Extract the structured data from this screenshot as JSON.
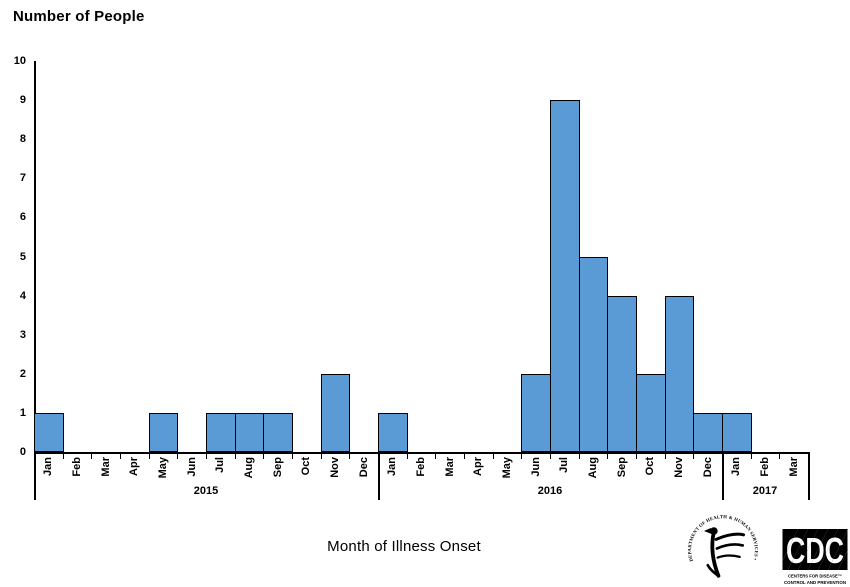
{
  "chart_data": {
    "type": "bar",
    "title": "Number of People",
    "xlabel": "Month of Illness Onset",
    "ylabel": "Number of People",
    "ylim": [
      0,
      10
    ],
    "ytick_step": 1,
    "grid": false,
    "legend": false,
    "background": "#FFFFFF",
    "axis_color": "#000000",
    "bar_color": "#5B9BD5",
    "bar_border_color": "#000000",
    "years": [
      {
        "label": "2015",
        "months": [
          "Jan",
          "Feb",
          "Mar",
          "Apr",
          "May",
          "Jun",
          "Jul",
          "Aug",
          "Sep",
          "Oct",
          "Nov",
          "Dec"
        ],
        "values": [
          1,
          0,
          0,
          0,
          1,
          0,
          1,
          1,
          1,
          0,
          2,
          0
        ]
      },
      {
        "label": "2016",
        "months": [
          "Jan",
          "Feb",
          "Mar",
          "Apr",
          "May",
          "Jun",
          "Jul",
          "Aug",
          "Sep",
          "Oct",
          "Nov",
          "Dec"
        ],
        "values": [
          1,
          0,
          0,
          0,
          0,
          2,
          9,
          5,
          4,
          2,
          4,
          1
        ]
      },
      {
        "label": "2017",
        "months": [
          "Jan",
          "Feb",
          "Mar"
        ],
        "values": [
          1,
          0,
          0
        ]
      }
    ]
  },
  "logos": {
    "hhs_seal_text": "DEPARTMENT OF HEALTH & HUMAN SERVICES • USA",
    "cdc_acronym": "CDC",
    "cdc_sub_line1": "CENTERS FOR DISEASE™",
    "cdc_sub_line2": "CONTROL AND PREVENTION"
  }
}
